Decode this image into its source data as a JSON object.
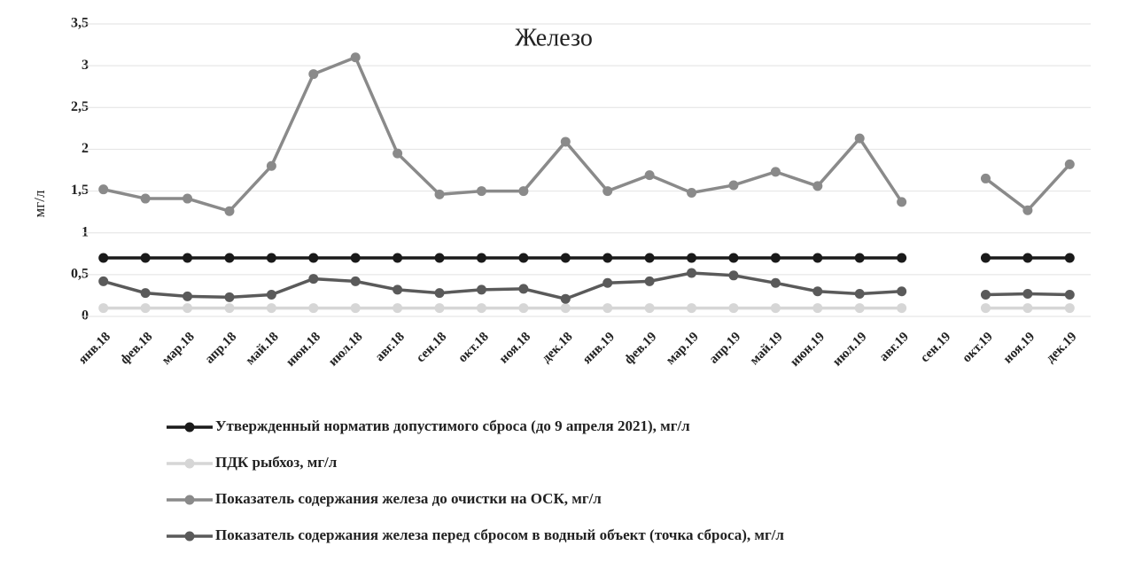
{
  "chart_data": {
    "type": "line",
    "title": "Железо",
    "ylabel": "мг/л",
    "categories": [
      "янв.18",
      "фев.18",
      "мар.18",
      "апр.18",
      "май.18",
      "июн.18",
      "июл.18",
      "авг.18",
      "сен.18",
      "окт.18",
      "ноя.18",
      "дек.18",
      "янв.19",
      "фев.19",
      "мар.19",
      "апр.19",
      "май.19",
      "июн.19",
      "июл.19",
      "авг.19",
      "сен.19",
      "окт.19",
      "ноя.19",
      "дек.19"
    ],
    "ylim": [
      0,
      3.5
    ],
    "yticks": [
      0,
      {
        "value": 0.5,
        "label": "0,5"
      },
      1,
      {
        "value": 1.5,
        "label": "1,5"
      },
      2,
      {
        "value": 2.5,
        "label": "2,5"
      },
      3,
      {
        "value": 3.5,
        "label": "3,5"
      }
    ],
    "grid": true,
    "series": [
      {
        "name": "Утвержденный норматив допустимого сброса (до 9 апреля 2021),  мг/л",
        "color": "#1a1a1a",
        "values": [
          0.7,
          0.7,
          0.7,
          0.7,
          0.7,
          0.7,
          0.7,
          0.7,
          0.7,
          0.7,
          0.7,
          0.7,
          0.7,
          0.7,
          0.7,
          0.7,
          0.7,
          0.7,
          0.7,
          0.7,
          null,
          0.7,
          0.7,
          0.7
        ]
      },
      {
        "name": "ПДК рыбхоз, мг/л",
        "color": "#d6d6d6",
        "values": [
          0.1,
          0.1,
          0.1,
          0.1,
          0.1,
          0.1,
          0.1,
          0.1,
          0.1,
          0.1,
          0.1,
          0.1,
          0.1,
          0.1,
          0.1,
          0.1,
          0.1,
          0.1,
          0.1,
          0.1,
          null,
          0.1,
          0.1,
          0.1
        ]
      },
      {
        "name": "Показатель содержания железа до очистки на ОСК, мг/л",
        "color": "#8a8a8a",
        "values": [
          1.52,
          1.41,
          1.41,
          1.26,
          1.8,
          2.9,
          3.1,
          1.95,
          1.46,
          1.5,
          1.5,
          2.09,
          1.5,
          1.69,
          1.48,
          1.57,
          1.73,
          1.56,
          2.13,
          1.37,
          null,
          1.65,
          1.27,
          1.82
        ]
      },
      {
        "name": "Показатель содержания железа перед сбросом в водный объект (точка сброса), мг/л",
        "color": "#5a5a5a",
        "values": [
          0.42,
          0.28,
          0.24,
          0.23,
          0.26,
          0.45,
          0.42,
          0.32,
          0.28,
          0.32,
          0.33,
          0.21,
          0.4,
          0.42,
          0.52,
          0.49,
          0.4,
          0.3,
          0.27,
          0.3,
          null,
          0.26,
          0.27,
          0.26
        ]
      }
    ]
  }
}
